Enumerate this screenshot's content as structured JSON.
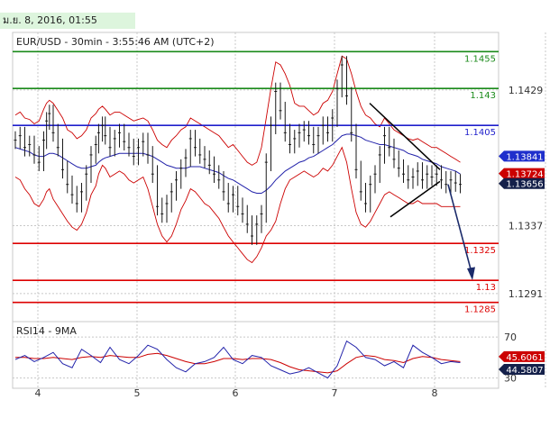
{
  "timestamp": "ม.ย. 8, 2016, 01:55",
  "chart_title": "EUR/USD - 30min - 3:55:46 AM (UTC+2)",
  "rsi_title": "RSI14 - 9MA",
  "colors": {
    "green": "#1a8a1a",
    "blue": "#1f1fcc",
    "red": "#dd0000",
    "price": "#1a1a1a",
    "band": "#cc0000",
    "ma": "#2222aa",
    "grid": "#c8c8c8",
    "current_tag": "#14204a",
    "red_tag": "#cc0000",
    "blue_tag": "#1f2fcc"
  },
  "chart_data": {
    "type": "line",
    "title": "EUR/USD - 30min - 3:55:46 AM (UTC+2)",
    "x_ticks": [
      "4",
      "5",
      "6",
      "7",
      "8"
    ],
    "y_ticks": [
      "1.1429",
      "1.1337",
      "1.1291"
    ],
    "ylim": [
      1.1272,
      1.1468
    ],
    "levels": [
      {
        "value": 1.1455,
        "label": "1.1455",
        "color": "green"
      },
      {
        "value": 1.143,
        "label": "1.143",
        "color": "green"
      },
      {
        "value": 1.1405,
        "label": "1.1405",
        "color": "blue"
      },
      {
        "value": 1.1325,
        "label": "1.1325",
        "color": "red"
      },
      {
        "value": 1.13,
        "label": "1.13",
        "color": "red"
      },
      {
        "value": 1.1285,
        "label": "1.1285",
        "color": "red"
      }
    ],
    "price_tags": [
      {
        "value": 1.13841,
        "label": "1.13841",
        "kind": "blue"
      },
      {
        "value": 1.13724,
        "label": "1.13724",
        "kind": "red"
      },
      {
        "value": 1.13656,
        "label": "1.13656",
        "kind": "current"
      }
    ],
    "price_x": [
      0,
      5,
      10,
      15,
      20,
      25,
      30,
      33,
      36,
      40,
      45,
      50,
      55,
      60,
      65,
      70,
      75,
      80,
      85,
      88,
      92,
      95,
      100,
      105,
      110,
      115,
      120,
      125,
      130,
      135,
      140,
      145,
      150,
      155,
      160,
      165,
      170,
      175,
      180,
      185,
      190,
      195,
      200,
      205,
      210,
      215,
      220,
      225,
      230,
      235,
      240,
      245,
      250,
      255,
      260,
      265,
      270,
      275,
      280,
      285,
      290,
      295,
      300,
      305,
      310,
      315,
      320,
      325,
      330,
      335,
      340,
      345,
      350,
      355,
      360,
      365,
      370,
      375,
      380,
      385,
      390,
      395,
      400,
      405,
      410,
      415,
      420,
      425,
      430,
      435,
      440,
      445,
      450,
      455,
      460,
      465,
      470
    ],
    "price_y": [
      1.1395,
      1.1398,
      1.139,
      1.1392,
      1.1385,
      1.138,
      1.1395,
      1.1408,
      1.1413,
      1.14,
      1.139,
      1.1375,
      1.1365,
      1.1358,
      1.1352,
      1.136,
      1.1372,
      1.1385,
      1.1392,
      1.14,
      1.1405,
      1.1398,
      1.139,
      1.1396,
      1.14,
      1.1394,
      1.139,
      1.1384,
      1.139,
      1.1394,
      1.1385,
      1.1372,
      1.135,
      1.1345,
      1.1352,
      1.136,
      1.1368,
      1.1376,
      1.1383,
      1.1396,
      1.139,
      1.1385,
      1.1382,
      1.1378,
      1.1372,
      1.1368,
      1.136,
      1.1352,
      1.1358,
      1.135,
      1.1345,
      1.1338,
      1.133,
      1.1338,
      1.1345,
      1.138,
      1.1405,
      1.1428,
      1.1415,
      1.14,
      1.1392,
      1.1396,
      1.14,
      1.1402,
      1.1398,
      1.1392,
      1.1398,
      1.1405,
      1.14,
      1.141,
      1.143,
      1.1446,
      1.1425,
      1.14,
      1.1375,
      1.136,
      1.1352,
      1.1365,
      1.1372,
      1.1385,
      1.1398,
      1.139,
      1.1382,
      1.1376,
      1.1372,
      1.1368,
      1.137,
      1.1374,
      1.1368,
      1.1372,
      1.137,
      1.1372,
      1.1368,
      1.1365,
      1.1368,
      1.1366,
      1.1365
    ],
    "ma_y": [
      1.139,
      1.1389,
      1.1388,
      1.1387,
      1.1385,
      1.1384,
      1.1384,
      1.1385,
      1.1386,
      1.1386,
      1.1385,
      1.1383,
      1.1381,
      1.1379,
      1.1377,
      1.1376,
      1.1376,
      1.1377,
      1.1378,
      1.138,
      1.1382,
      1.1383,
      1.1384,
      1.1385,
      1.1386,
      1.1386,
      1.1386,
      1.1386,
      1.1386,
      1.1386,
      1.1385,
      1.1384,
      1.1382,
      1.138,
      1.1378,
      1.1377,
      1.1376,
      1.1376,
      1.1376,
      1.1377,
      1.1377,
      1.1377,
      1.1376,
      1.1375,
      1.1374,
      1.1373,
      1.1371,
      1.1369,
      1.1368,
      1.1366,
      1.1364,
      1.1362,
      1.136,
      1.1359,
      1.1359,
      1.1361,
      1.1364,
      1.1368,
      1.1371,
      1.1374,
      1.1376,
      1.1378,
      1.138,
      1.1381,
      1.1383,
      1.1384,
      1.1386,
      1.1388,
      1.139,
      1.1392,
      1.1395,
      1.1398,
      1.1399,
      1.1399,
      1.1398,
      1.1397,
      1.1395,
      1.1394,
      1.1393,
      1.1392,
      1.1392,
      1.1391,
      1.139,
      1.1389,
      1.1388,
      1.1386,
      1.1385,
      1.1384,
      1.1382,
      1.1381,
      1.138,
      1.1379,
      1.1377,
      1.1376,
      1.1375,
      1.1374,
      1.1372
    ],
    "band_upper_y": [
      1.1412,
      1.1414,
      1.141,
      1.1409,
      1.1406,
      1.1408,
      1.1416,
      1.142,
      1.1422,
      1.142,
      1.1415,
      1.141,
      1.1402,
      1.14,
      1.1396,
      1.1398,
      1.1402,
      1.141,
      1.1413,
      1.1416,
      1.1418,
      1.1416,
      1.1412,
      1.1414,
      1.1414,
      1.1412,
      1.141,
      1.1408,
      1.1409,
      1.141,
      1.1408,
      1.1402,
      1.1395,
      1.1392,
      1.139,
      1.1395,
      1.1398,
      1.1402,
      1.1404,
      1.141,
      1.1408,
      1.1406,
      1.1404,
      1.1402,
      1.14,
      1.1398,
      1.1394,
      1.139,
      1.1392,
      1.1388,
      1.1384,
      1.138,
      1.1378,
      1.138,
      1.139,
      1.141,
      1.143,
      1.1448,
      1.1446,
      1.144,
      1.1432,
      1.142,
      1.1418,
      1.1418,
      1.1415,
      1.1412,
      1.1414,
      1.142,
      1.1422,
      1.1428,
      1.144,
      1.1452,
      1.145,
      1.144,
      1.1428,
      1.1418,
      1.1412,
      1.141,
      1.1406,
      1.1404,
      1.141,
      1.1406,
      1.1402,
      1.14,
      1.1398,
      1.1396,
      1.1395,
      1.1396,
      1.1394,
      1.1392,
      1.139,
      1.139,
      1.1388,
      1.1386,
      1.1384,
      1.1382,
      1.138
    ],
    "band_lower_y": [
      1.137,
      1.1368,
      1.1362,
      1.1358,
      1.1352,
      1.135,
      1.1355,
      1.136,
      1.1362,
      1.1355,
      1.135,
      1.1345,
      1.134,
      1.1336,
      1.1334,
      1.1338,
      1.1346,
      1.1358,
      1.1364,
      1.1372,
      1.1378,
      1.1376,
      1.137,
      1.1372,
      1.1374,
      1.1372,
      1.1368,
      1.1366,
      1.1368,
      1.137,
      1.1362,
      1.135,
      1.1338,
      1.133,
      1.1326,
      1.133,
      1.1338,
      1.1348,
      1.1354,
      1.1362,
      1.136,
      1.1356,
      1.1352,
      1.135,
      1.1346,
      1.1342,
      1.1336,
      1.133,
      1.1326,
      1.1322,
      1.1318,
      1.1314,
      1.1312,
      1.1316,
      1.1322,
      1.133,
      1.1334,
      1.134,
      1.1352,
      1.1362,
      1.1368,
      1.137,
      1.1372,
      1.1374,
      1.1372,
      1.137,
      1.1372,
      1.1376,
      1.1374,
      1.1378,
      1.1384,
      1.139,
      1.138,
      1.1362,
      1.1346,
      1.1338,
      1.1336,
      1.134,
      1.1346,
      1.1352,
      1.1358,
      1.136,
      1.1358,
      1.1356,
      1.1354,
      1.1352,
      1.1352,
      1.1354,
      1.1352,
      1.1352,
      1.1352,
      1.1352,
      1.135,
      1.135,
      1.135,
      1.135,
      1.135
    ],
    "rsi": {
      "ticks": [
        "70",
        "30"
      ],
      "ylim": [
        20,
        85
      ],
      "tags": [
        {
          "value": 45.6061,
          "label": "45.6061",
          "kind": "red"
        },
        {
          "value": 44.5807,
          "label": "44.5807",
          "kind": "current"
        }
      ],
      "x": [
        0,
        10,
        20,
        30,
        40,
        50,
        60,
        70,
        80,
        90,
        100,
        110,
        120,
        130,
        140,
        150,
        160,
        170,
        180,
        190,
        200,
        210,
        220,
        230,
        240,
        250,
        260,
        270,
        280,
        290,
        300,
        310,
        320,
        330,
        340,
        350,
        360,
        370,
        380,
        390,
        400,
        410,
        420,
        430,
        440,
        450,
        460,
        470
      ],
      "rsi_y": [
        48,
        52,
        46,
        50,
        55,
        44,
        40,
        58,
        52,
        45,
        60,
        48,
        44,
        52,
        62,
        58,
        48,
        40,
        36,
        44,
        46,
        50,
        60,
        48,
        44,
        52,
        50,
        42,
        38,
        34,
        36,
        40,
        35,
        30,
        42,
        66,
        60,
        50,
        48,
        42,
        46,
        40,
        62,
        55,
        50,
        44,
        46,
        45
      ],
      "ma_y": [
        50,
        50,
        49,
        49,
        50,
        49,
        48,
        50,
        51,
        50,
        52,
        51,
        50,
        50,
        53,
        54,
        52,
        49,
        46,
        44,
        44,
        46,
        49,
        49,
        48,
        49,
        49,
        48,
        45,
        41,
        38,
        37,
        36,
        35,
        37,
        44,
        50,
        52,
        51,
        48,
        47,
        45,
        49,
        51,
        50,
        48,
        47,
        46
      ]
    }
  }
}
